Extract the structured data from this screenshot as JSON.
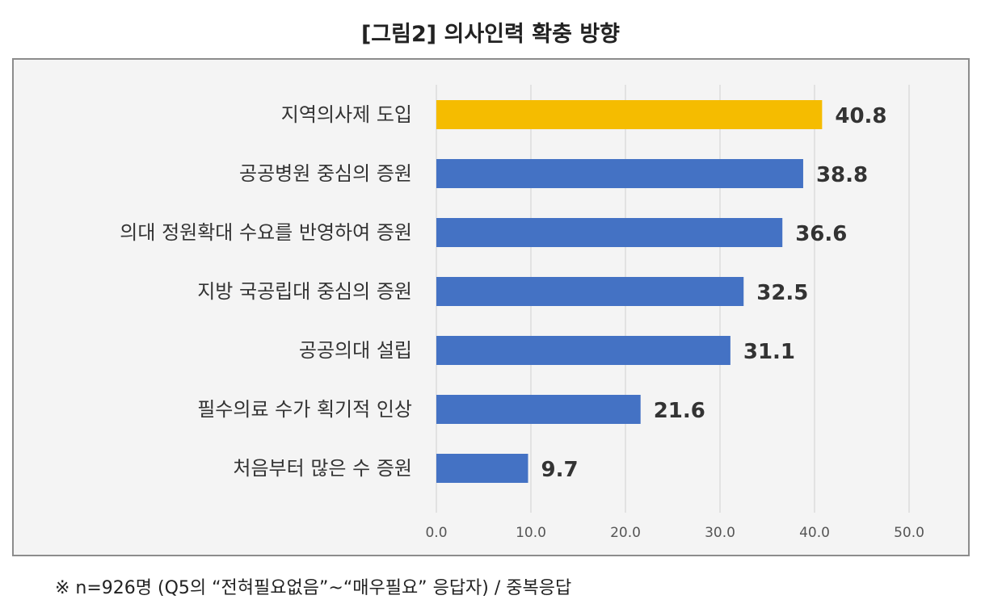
{
  "title": "[그림2] 의사인력 확충 방향",
  "footnote": "※ n=926명 (Q5의 “전혀필요없음”~“매우필요” 응답자) / 중복응답",
  "colors": {
    "highlight": "#F5BC00",
    "bar": "#4472C4"
  },
  "chart_data": {
    "type": "bar",
    "orientation": "horizontal",
    "categories": [
      "지역의사제 도입",
      "공공병원 중심의 증원",
      "의대 정원확대 수요를 반영하여 증원",
      "지방 국공립대 중심의 증원",
      "공공의대 설립",
      "필수의료 수가 획기적 인상",
      "처음부터 많은 수 증원"
    ],
    "values": [
      40.8,
      38.8,
      36.6,
      32.5,
      31.1,
      21.6,
      9.7
    ],
    "value_labels": [
      "40.8",
      "38.8",
      "36.6",
      "32.5",
      "31.1",
      "21.6",
      "9.7"
    ],
    "highlight_index": 0,
    "xlim": [
      0,
      50
    ],
    "xticks": [
      "0.0",
      "10.0",
      "20.0",
      "30.0",
      "40.0",
      "50.0"
    ],
    "grid": true,
    "xlabel": "",
    "ylabel": ""
  }
}
